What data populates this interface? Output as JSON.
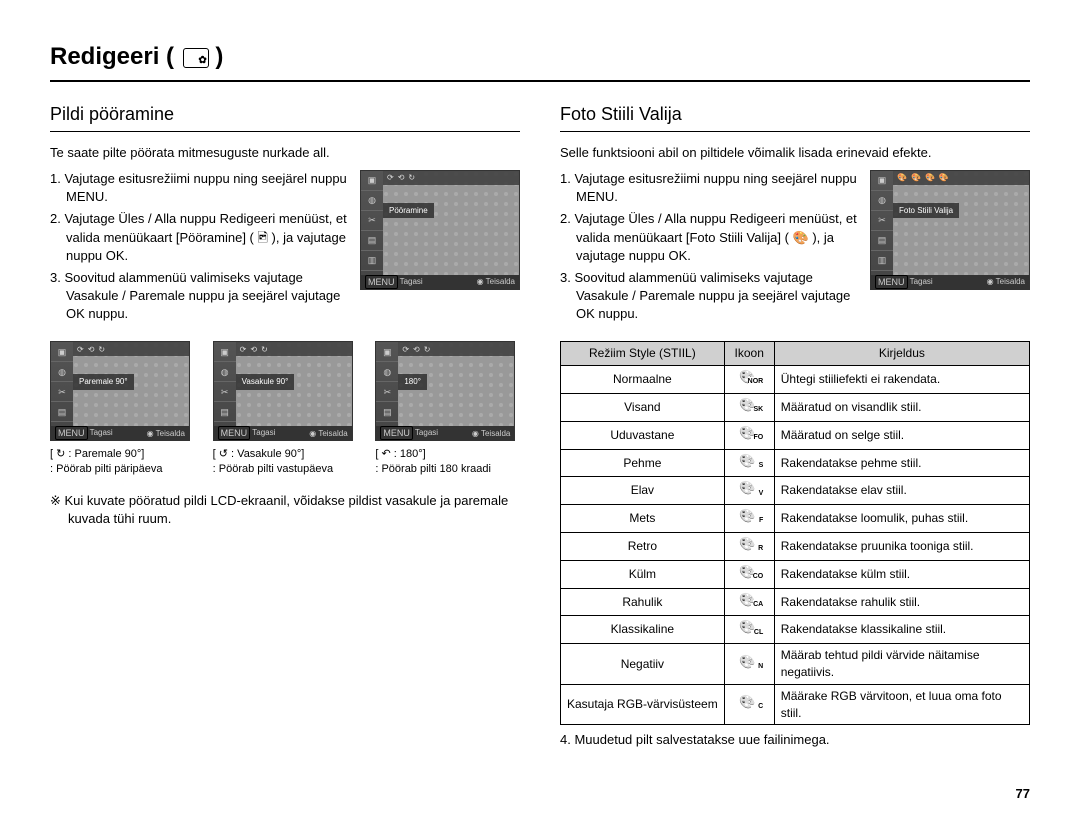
{
  "page": {
    "title": "Redigeeri",
    "number": "77"
  },
  "left": {
    "heading": "Pildi pööramine",
    "intro": "Te saate pilte pöörata mitmesuguste nurkade all.",
    "steps": [
      "1. Vajutage esitusrežiimi nuppu ning seejärel nuppu MENU.",
      "2. Vajutage Üles / Alla nuppu Redigeeri menüüst, et valida menüükaart [Pööramine] ( 🖻 ), ja vajutage nuppu OK.",
      "3. Soovitud alammenüü valimiseks vajutage Vasakule / Paremale nuppu ja seejärel vajutage OK nuppu."
    ],
    "screenshot": {
      "label": "Pööramine",
      "back": "Tagasi",
      "move": "Teisalda",
      "menu": "MENU"
    },
    "thumbs": [
      {
        "title": "Paremale 90°",
        "label": "[ ↻ : Paremale 90°]",
        "desc": ": Pöörab pilti päripäeva"
      },
      {
        "title": "Vasakule 90°",
        "label": "[ ↺ : Vasakule 90°]",
        "desc": ": Pöörab pilti vastupäeva"
      },
      {
        "title": "180°",
        "label": "[ ↶ : 180°]",
        "desc": ": Pöörab pilti 180 kraadi"
      }
    ],
    "note": "※ Kui kuvate pööratud pildi LCD-ekraanil, võidakse pildist vasakule ja paremale kuvada tühi ruum."
  },
  "right": {
    "heading": "Foto Stiili Valija",
    "intro": "Selle funktsiooni abil on piltidele võimalik lisada erinevaid efekte.",
    "steps": [
      "1. Vajutage esitusrežiimi nuppu ning seejärel nuppu MENU.",
      "2. Vajutage Üles / Alla nuppu Redigeeri menüüst, et valida menüükaart [Foto Stiili Valija] ( 🎨 ), ja vajutage nuppu OK.",
      "3. Soovitud alammenüü valimiseks vajutage Vasakule / Paremale nuppu ja seejärel vajutage OK nuppu."
    ],
    "screenshot": {
      "label": "Foto Stiili Valija",
      "back": "Tagasi",
      "move": "Teisalda",
      "menu": "MENU"
    },
    "table": {
      "headers": [
        "Režiim Style (STIIL)",
        "Ikoon",
        "Kirjeldus"
      ],
      "rows": [
        {
          "mode": "Normaalne",
          "sub": "NOR",
          "desc": "Ühtegi stiiliefekti ei rakendata."
        },
        {
          "mode": "Visand",
          "sub": "SK",
          "desc": "Määratud on visandlik stiil."
        },
        {
          "mode": "Uduvastane",
          "sub": "FO",
          "desc": "Määratud on selge stiil."
        },
        {
          "mode": "Pehme",
          "sub": "S",
          "desc": "Rakendatakse pehme stiil."
        },
        {
          "mode": "Elav",
          "sub": "V",
          "desc": "Rakendatakse elav stiil."
        },
        {
          "mode": "Mets",
          "sub": "F",
          "desc": "Rakendatakse loomulik, puhas stiil."
        },
        {
          "mode": "Retro",
          "sub": "R",
          "desc": "Rakendatakse pruunika tooniga stiil."
        },
        {
          "mode": "Külm",
          "sub": "CO",
          "desc": "Rakendatakse külm stiil."
        },
        {
          "mode": "Rahulik",
          "sub": "CA",
          "desc": "Rakendatakse rahulik stiil."
        },
        {
          "mode": "Klassikaline",
          "sub": "CL",
          "desc": "Rakendatakse klassikaline stiil."
        },
        {
          "mode": "Negatiiv",
          "sub": "N",
          "desc": "Määrab tehtud pildi värvide näitamise negatiivis."
        },
        {
          "mode": "Kasutaja RGB-värvisüsteem",
          "sub": "C",
          "desc": "Määrake RGB värvitoon, et luua oma foto stiil."
        }
      ]
    },
    "after": "4. Muudetud pilt salvestatakse uue failinimega."
  }
}
